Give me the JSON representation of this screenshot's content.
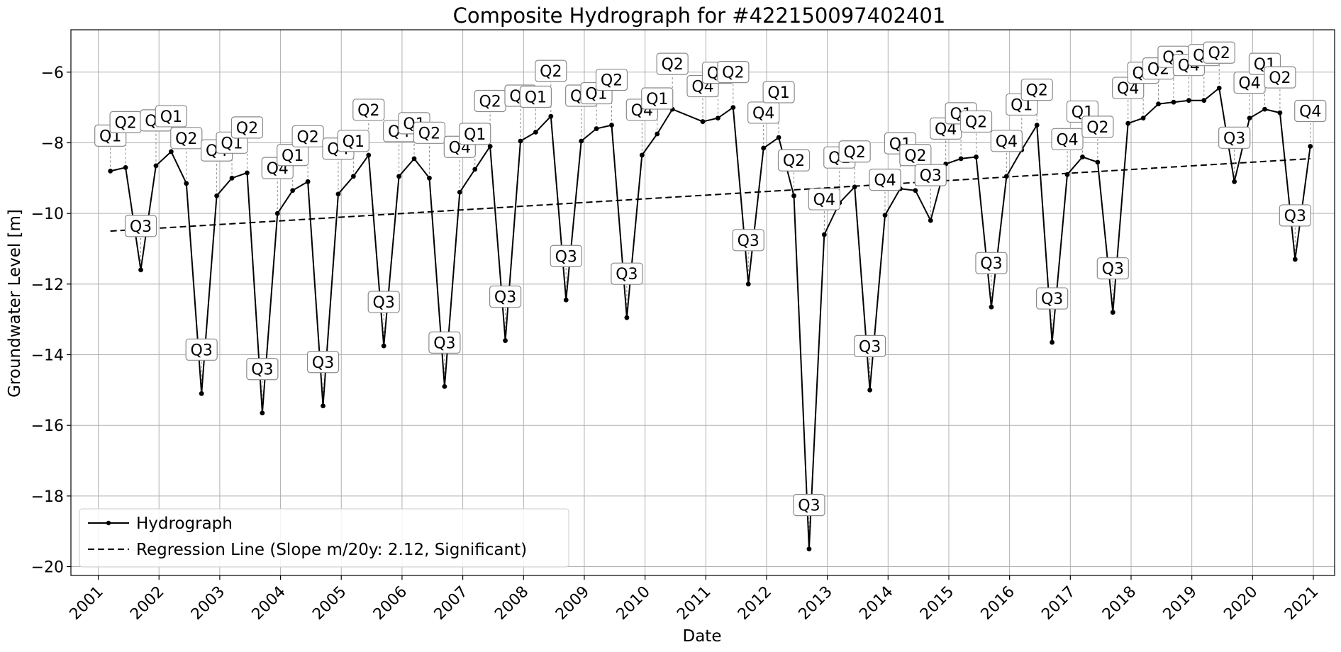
{
  "chart_data": {
    "type": "line",
    "title": "Composite Hydrograph for  #422150097402401",
    "xlabel": "Date",
    "ylabel": "Groundwater Level [m]",
    "xlim": [
      2000.55,
      2021.35
    ],
    "ylim": [
      -20.25,
      -4.8
    ],
    "yticks": [
      -6,
      -8,
      -10,
      -12,
      -14,
      -16,
      -18,
      -20
    ],
    "ytick_labels": [
      "−6",
      "−8",
      "−10",
      "−12",
      "−14",
      "−16",
      "−18",
      "−20"
    ],
    "xticks": [
      2001,
      2002,
      2003,
      2004,
      2005,
      2006,
      2007,
      2008,
      2009,
      2010,
      2011,
      2012,
      2013,
      2014,
      2015,
      2016,
      2017,
      2018,
      2019,
      2020,
      2021
    ],
    "grid": true,
    "legend_position": "lower-left",
    "series": [
      {
        "name": "Hydrograph",
        "style": "solid-with-markers",
        "color": "#000000",
        "points": [
          {
            "x": 2001.2,
            "y": -8.8,
            "label": "Q1"
          },
          {
            "x": 2001.45,
            "y": -8.7,
            "label": "Q2"
          },
          {
            "x": 2001.7,
            "y": -11.6,
            "label": "Q3"
          },
          {
            "x": 2001.95,
            "y": -8.65,
            "label": "Q4"
          },
          {
            "x": 2002.2,
            "y": -8.25,
            "label": "Q1"
          },
          {
            "x": 2002.45,
            "y": -9.15,
            "label": "Q2"
          },
          {
            "x": 2002.7,
            "y": -15.1,
            "label": "Q3"
          },
          {
            "x": 2002.95,
            "y": -9.5,
            "label": "Q4"
          },
          {
            "x": 2003.2,
            "y": -9.0,
            "label": "Q1"
          },
          {
            "x": 2003.45,
            "y": -8.85,
            "label": "Q2"
          },
          {
            "x": 2003.7,
            "y": -15.65,
            "label": "Q3"
          },
          {
            "x": 2003.95,
            "y": -10.0,
            "label": "Q4"
          },
          {
            "x": 2004.2,
            "y": -9.35,
            "label": "Q1"
          },
          {
            "x": 2004.45,
            "y": -9.1,
            "label": "Q2"
          },
          {
            "x": 2004.7,
            "y": -15.45,
            "label": "Q3"
          },
          {
            "x": 2004.95,
            "y": -9.45,
            "label": "Q4"
          },
          {
            "x": 2005.2,
            "y": -8.95,
            "label": "Q1"
          },
          {
            "x": 2005.45,
            "y": -8.35,
            "label": "Q2"
          },
          {
            "x": 2005.7,
            "y": -13.75,
            "label": "Q3"
          },
          {
            "x": 2005.95,
            "y": -8.95,
            "label": "Q4"
          },
          {
            "x": 2006.2,
            "y": -8.45,
            "label": "Q1"
          },
          {
            "x": 2006.45,
            "y": -9.0,
            "label": "Q2"
          },
          {
            "x": 2006.7,
            "y": -14.9,
            "label": "Q3"
          },
          {
            "x": 2006.95,
            "y": -9.4,
            "label": "Q4"
          },
          {
            "x": 2007.2,
            "y": -8.75,
            "label": "Q1"
          },
          {
            "x": 2007.45,
            "y": -8.1,
            "label": "Q2"
          },
          {
            "x": 2007.7,
            "y": -13.6,
            "label": "Q3"
          },
          {
            "x": 2007.95,
            "y": -7.95,
            "label": "Q4"
          },
          {
            "x": 2008.2,
            "y": -7.7,
            "label": "Q1"
          },
          {
            "x": 2008.45,
            "y": -7.25,
            "label": "Q2"
          },
          {
            "x": 2008.7,
            "y": -12.45,
            "label": "Q3"
          },
          {
            "x": 2008.95,
            "y": -7.95,
            "label": "Q4"
          },
          {
            "x": 2009.2,
            "y": -7.6,
            "label": "Q1"
          },
          {
            "x": 2009.45,
            "y": -7.5,
            "label": "Q2"
          },
          {
            "x": 2009.7,
            "y": -12.95,
            "label": "Q3"
          },
          {
            "x": 2009.95,
            "y": -8.35,
            "label": "Q4"
          },
          {
            "x": 2010.2,
            "y": -7.75,
            "label": "Q1"
          },
          {
            "x": 2010.45,
            "y": -7.05,
            "label": "Q2"
          },
          {
            "x": 2010.95,
            "y": -7.4,
            "label": "Q4"
          },
          {
            "x": 2011.2,
            "y": -7.3,
            "label": "Q1"
          },
          {
            "x": 2011.45,
            "y": -7.0,
            "label": "Q2"
          },
          {
            "x": 2011.7,
            "y": -12.0,
            "label": "Q3"
          },
          {
            "x": 2011.95,
            "y": -8.15,
            "label": "Q4"
          },
          {
            "x": 2012.2,
            "y": -7.85,
            "label": "Q1"
          },
          {
            "x": 2012.45,
            "y": -9.5,
            "label": "Q2"
          },
          {
            "x": 2012.7,
            "y": -19.5,
            "label": "Q3"
          },
          {
            "x": 2012.95,
            "y": -10.6,
            "label": "Q4"
          },
          {
            "x": 2013.2,
            "y": -9.7,
            "label": "Q1"
          },
          {
            "x": 2013.45,
            "y": -9.25,
            "label": "Q2"
          },
          {
            "x": 2013.7,
            "y": -15.0,
            "label": "Q3"
          },
          {
            "x": 2013.95,
            "y": -10.05,
            "label": "Q4"
          },
          {
            "x": 2014.2,
            "y": -9.3,
            "label": "Q1"
          },
          {
            "x": 2014.45,
            "y": -9.35,
            "label": "Q2"
          },
          {
            "x": 2014.7,
            "y": -10.2,
            "label": "Q3"
          },
          {
            "x": 2014.95,
            "y": -8.6,
            "label": "Q4"
          },
          {
            "x": 2015.2,
            "y": -8.45,
            "label": "Q1"
          },
          {
            "x": 2015.45,
            "y": -8.4,
            "label": "Q2"
          },
          {
            "x": 2015.7,
            "y": -12.65,
            "label": "Q3"
          },
          {
            "x": 2015.95,
            "y": -8.95,
            "label": "Q4"
          },
          {
            "x": 2016.2,
            "y": -8.2,
            "label": "Q1"
          },
          {
            "x": 2016.45,
            "y": -7.5,
            "label": "Q2"
          },
          {
            "x": 2016.7,
            "y": -13.65,
            "label": "Q3"
          },
          {
            "x": 2016.95,
            "y": -8.9,
            "label": "Q4"
          },
          {
            "x": 2017.2,
            "y": -8.4,
            "label": "Q1"
          },
          {
            "x": 2017.45,
            "y": -8.55,
            "label": "Q2"
          },
          {
            "x": 2017.7,
            "y": -12.8,
            "label": "Q3"
          },
          {
            "x": 2017.95,
            "y": -7.45,
            "label": "Q4"
          },
          {
            "x": 2018.2,
            "y": -7.3,
            "label": "Q1"
          },
          {
            "x": 2018.45,
            "y": -6.9,
            "label": "Q2"
          },
          {
            "x": 2018.7,
            "y": -6.85,
            "label": "Q3"
          },
          {
            "x": 2018.95,
            "y": -6.8,
            "label": "Q4"
          },
          {
            "x": 2019.2,
            "y": -6.8,
            "label": "Q1"
          },
          {
            "x": 2019.45,
            "y": -6.45,
            "label": "Q2"
          },
          {
            "x": 2019.7,
            "y": -9.1,
            "label": "Q3"
          },
          {
            "x": 2019.95,
            "y": -7.3,
            "label": "Q4"
          },
          {
            "x": 2020.2,
            "y": -7.05,
            "label": "Q1"
          },
          {
            "x": 2020.45,
            "y": -7.15,
            "label": "Q2"
          },
          {
            "x": 2020.7,
            "y": -11.3,
            "label": "Q3"
          },
          {
            "x": 2020.95,
            "y": -8.1,
            "label": "Q4"
          }
        ]
      },
      {
        "name": "Regression Line (Slope m/20y: 2.12, Significant)",
        "style": "dashed",
        "color": "#000000",
        "points": [
          {
            "x": 2001.2,
            "y": -10.5
          },
          {
            "x": 2020.95,
            "y": -8.45
          }
        ]
      }
    ]
  }
}
